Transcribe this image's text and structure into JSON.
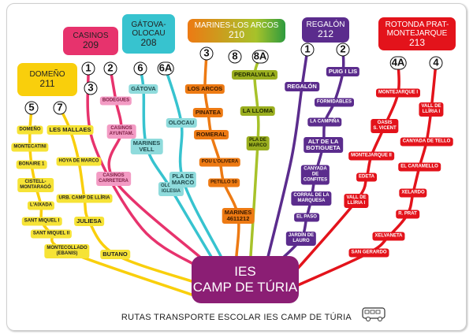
{
  "center": {
    "line1": "IES",
    "line2": "CAMP DE TÚRIA"
  },
  "footer": "RUTAS TRANSPORTE ESCOLAR IES CAMP DE TÚRIA",
  "footer_icon": "bus-icon",
  "colors": {
    "yellow": "#f9cf0c",
    "yellow_light": "#f6e336",
    "pink": "#e7336d",
    "pink_light": "#f39bc4",
    "cyan": "#37c3cf",
    "cyan_light": "#8fdbdc",
    "orange": "#ed7a13",
    "lime": "#a7c22a",
    "olive": "#9aae1f",
    "purple": "#5b2c8d",
    "red": "#e3131b",
    "center": "#8b1e74"
  },
  "routes": [
    {
      "name": "DOMEÑO",
      "number": "211",
      "color": "#f9cf0c",
      "lines": [
        {
          "id": "5",
          "stops": [
            "DOMEÑO",
            "MONTECATINI",
            "BONAIRE 1",
            "CISTELL-\nMONTARAGÓ",
            "L'AIXADA",
            "SANT MIQUEL I",
            "SANT MIQUEL II",
            "MONTECOLLADO\n(EBANIS)"
          ]
        },
        {
          "id": "7",
          "stops": [
            "LES MALLAES",
            "HOYA DE MARCO",
            "URB. CAMP DE LLÍRIA",
            "JULIESA",
            "BUTANO"
          ]
        }
      ]
    },
    {
      "name": "CASINOS",
      "number": "209",
      "color": "#e7336d",
      "lines": [
        {
          "id": "1",
          "stops": []
        },
        {
          "id": "2",
          "stops": [
            "BODEGUES",
            "CASINOS\nAYUNTAM.",
            "CASINOS\nCARRETERA"
          ]
        },
        {
          "id": "3",
          "stops": []
        }
      ]
    },
    {
      "name": "GÁTOVA-\nOLOCAU",
      "number": "208",
      "color": "#37c3cf",
      "lines": [
        {
          "id": "6",
          "stops": [
            "GÁTOVA",
            "MARINES\nVELL",
            "OLOCAU\nIGLESIA"
          ]
        },
        {
          "id": "6A",
          "stops": [
            "OLOCAU",
            "PLA DE\nMARCO"
          ]
        }
      ]
    },
    {
      "name": "MARINES-LOS ARCOS",
      "number": "210",
      "color": "#ed7a13",
      "lines": [
        {
          "id": "3",
          "stops": [
            "LOS ARCOS",
            "PINATEA",
            "ROMERAL",
            "POU L'OLIVERA",
            "PETILLO 50",
            "MARINES\n4611212"
          ]
        },
        {
          "id": "8",
          "stops": []
        },
        {
          "id": "8A",
          "stops": [
            "PEDRALVILLA",
            "LA LLOMA",
            "PLA DE\nMARCO"
          ]
        }
      ]
    },
    {
      "name": "REGALÓN",
      "number": "212",
      "color": "#5b2c8d",
      "lines": [
        {
          "id": "1",
          "stops": [
            "REGALÓN"
          ]
        },
        {
          "id": "2",
          "stops": [
            "PUIG I LIS",
            "FORMIDABLES",
            "LA CAMPIÑA",
            "ALT DE LA\nBOTIGUETA",
            "CANYADA\nDE\nCONFITES",
            "CORRAL DE LA\nMARQUESA",
            "EL PASO",
            "JARDÍN DE\nLAURO"
          ]
        }
      ]
    },
    {
      "name": "ROTONDA PRAT-\nMONTEJARQUE",
      "number": "213",
      "color": "#e3131b",
      "lines": [
        {
          "id": "4A",
          "stops": [
            "MONTEJARQUE I",
            "OASIS\nS. VICENT",
            "MONTEJARQUE II",
            "EDETA",
            "VALL DE\nLLÍRIA I",
            "SAN GERARDO"
          ]
        },
        {
          "id": "4",
          "stops": [
            "VALL DE\nLLÍRIA I",
            "CANYADA DE TELLO",
            "EL CARAMELLO",
            "XELARDO",
            "R. PRAT",
            "XELVANETA"
          ]
        }
      ]
    }
  ]
}
